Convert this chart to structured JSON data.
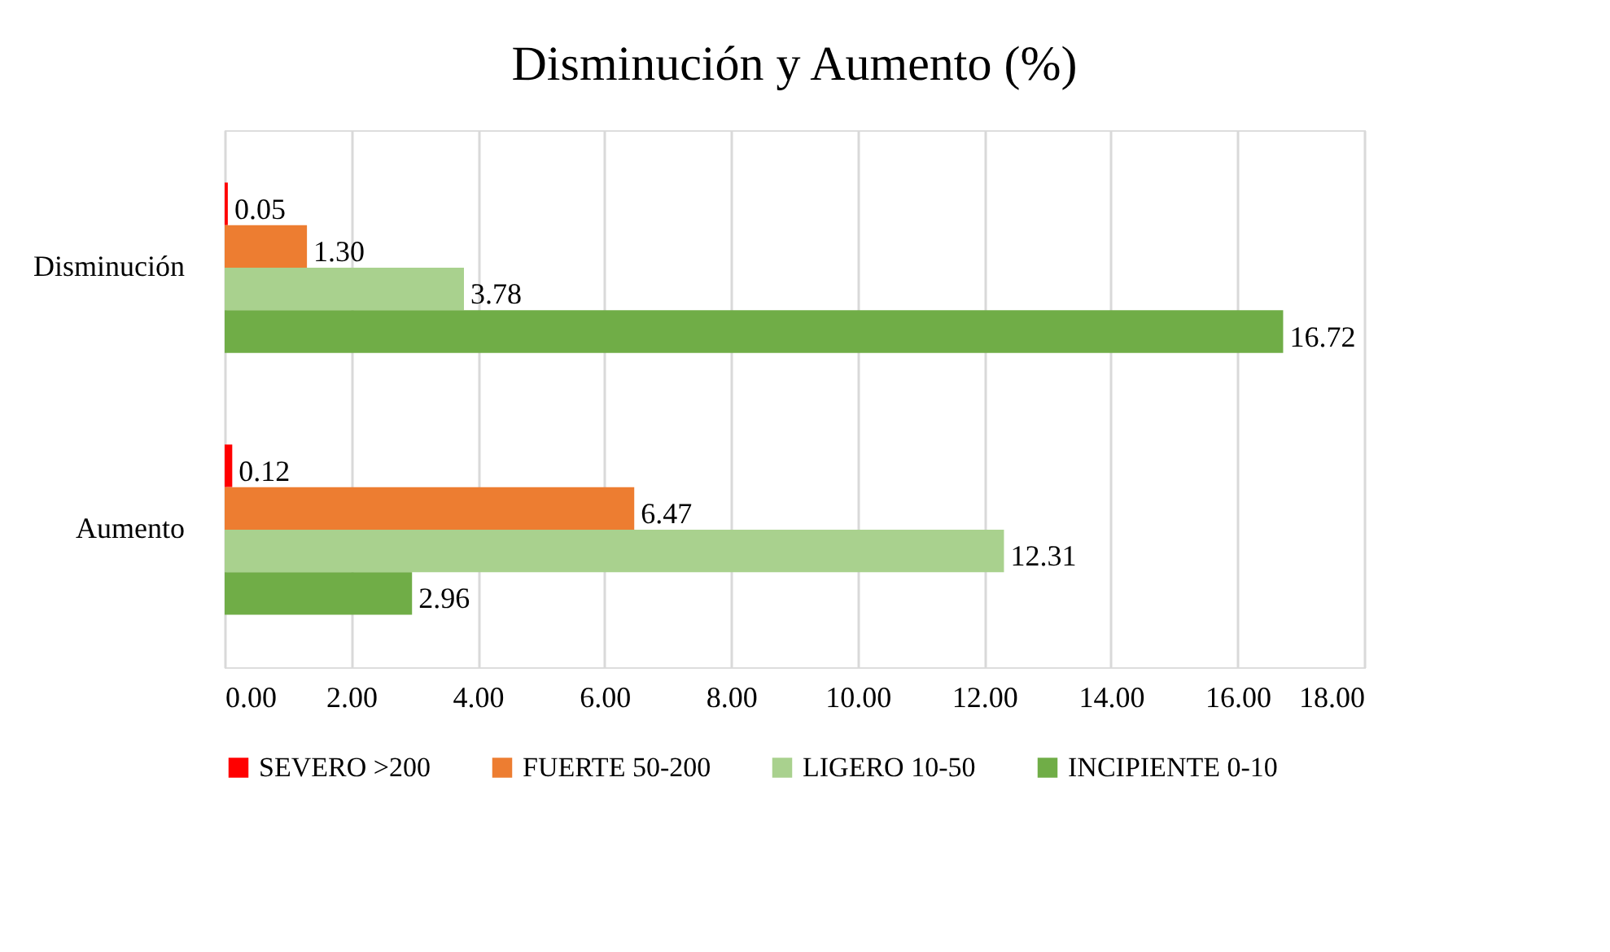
{
  "chart_data": {
    "type": "bar",
    "orientation": "horizontal",
    "title": "Disminución y Aumento (%)",
    "categories": [
      "Disminución",
      "Aumento"
    ],
    "series": [
      {
        "name": "SEVERO >200",
        "color": "#ff0000",
        "values": [
          0.05,
          0.12
        ],
        "value_labels": [
          "0.05",
          "0.12"
        ]
      },
      {
        "name": "FUERTE 50-200",
        "color": "#ed7d31",
        "values": [
          1.3,
          6.47
        ],
        "value_labels": [
          "1.30",
          "6.47"
        ]
      },
      {
        "name": "LIGERO 10-50",
        "color": "#a9d18e",
        "values": [
          3.78,
          12.31
        ],
        "value_labels": [
          "3.78",
          "12.31"
        ]
      },
      {
        "name": "INCIPIENTE 0-10",
        "color": "#70ad47",
        "values": [
          16.72,
          2.96
        ],
        "value_labels": [
          "16.72",
          "2.96"
        ]
      }
    ],
    "xlim": [
      0,
      18
    ],
    "xticks": [
      {
        "value": 0,
        "label": "0.00"
      },
      {
        "value": 2,
        "label": "2.00"
      },
      {
        "value": 4,
        "label": "4.00"
      },
      {
        "value": 6,
        "label": "6.00"
      },
      {
        "value": 8,
        "label": "8.00"
      },
      {
        "value": 10,
        "label": "10.00"
      },
      {
        "value": 12,
        "label": "12.00"
      },
      {
        "value": 14,
        "label": "14.00"
      },
      {
        "value": 16,
        "label": "16.00"
      },
      {
        "value": 18,
        "label": "18.00"
      }
    ],
    "grid": "x",
    "legend": "bottom"
  }
}
